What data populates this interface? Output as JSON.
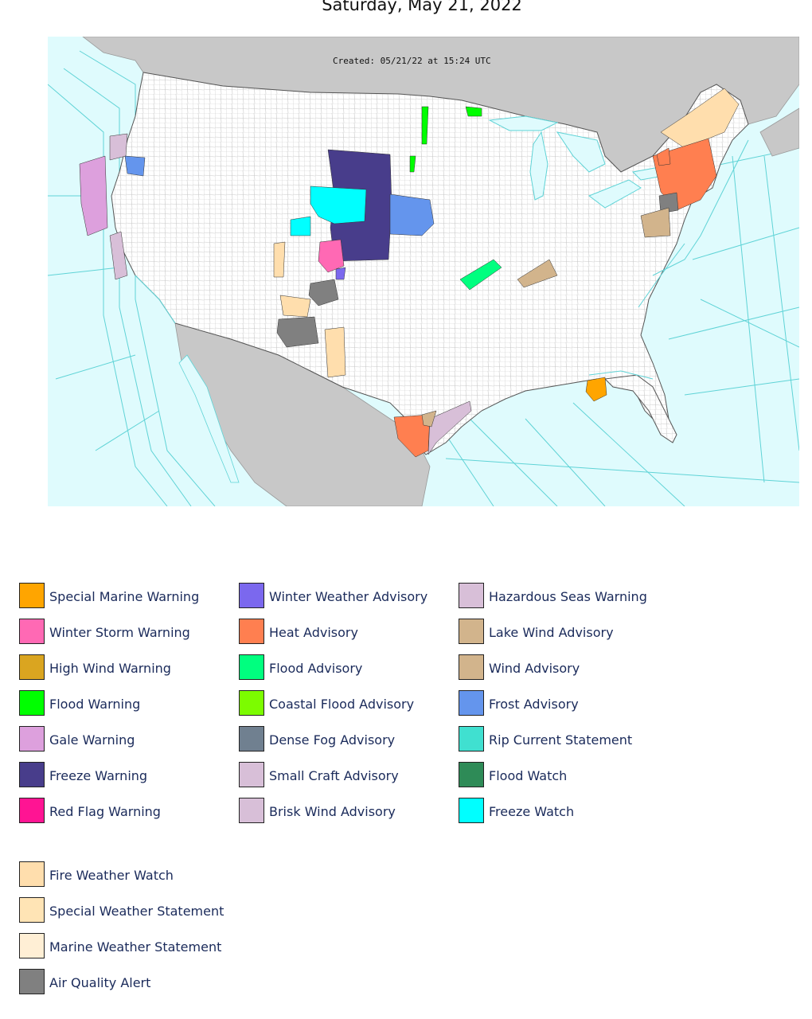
{
  "page": {
    "date": "Saturday, May 21, 2022"
  },
  "map": {
    "created_stamp": "Created: 05/21/22 at 15:24 UTC",
    "colors": {
      "ocean": "#dffbfd",
      "land_foreign": "#c8c8c8",
      "land_us": "#ffffff",
      "county_lines": "#bdbdbd",
      "marine_zone_lines": "#5fd3d6"
    }
  },
  "legend": {
    "columns": [
      [
        {
          "label": "Special Marine Warning",
          "color": "#FFA500"
        },
        {
          "label": "Winter Storm Warning",
          "color": "#FF69B4"
        },
        {
          "label": "High Wind Warning",
          "color": "#DAA520"
        },
        {
          "label": "Flood Warning",
          "color": "#00FF00"
        },
        {
          "label": "Gale Warning",
          "color": "#DDA0DD"
        },
        {
          "label": "Freeze Warning",
          "color": "#483D8B"
        },
        {
          "label": "Red Flag Warning",
          "color": "#FF1493"
        }
      ],
      [
        {
          "label": "Winter Weather Advisory",
          "color": "#7B68EE"
        },
        {
          "label": "Heat Advisory",
          "color": "#FF7F50"
        },
        {
          "label": "Flood Advisory",
          "color": "#00FF7F"
        },
        {
          "label": "Coastal Flood Advisory",
          "color": "#7CFC00"
        },
        {
          "label": "Dense Fog Advisory",
          "color": "#708090"
        },
        {
          "label": "Small Craft Advisory",
          "color": "#D8BFD8"
        },
        {
          "label": "Brisk Wind Advisory",
          "color": "#D8BFD8"
        }
      ],
      [
        {
          "label": "Hazardous Seas Warning",
          "color": "#D8BFD8"
        },
        {
          "label": "Lake Wind Advisory",
          "color": "#D2B48C"
        },
        {
          "label": "Wind Advisory",
          "color": "#D2B48C"
        },
        {
          "label": "Frost Advisory",
          "color": "#6495ED"
        },
        {
          "label": "Rip Current Statement",
          "color": "#40E0D0"
        },
        {
          "label": "Flood Watch",
          "color": "#2E8B57"
        },
        {
          "label": "Freeze Watch",
          "color": "#00FFFF"
        }
      ]
    ],
    "extra": [
      {
        "label": "Fire Weather Watch",
        "color": "#FFDEAD"
      },
      {
        "label": "Special Weather Statement",
        "color": "#FFE4B5"
      },
      {
        "label": "Marine Weather Statement",
        "color": "#FFEFD5"
      },
      {
        "label": "Air Quality Alert",
        "color": "#808080"
      }
    ]
  }
}
